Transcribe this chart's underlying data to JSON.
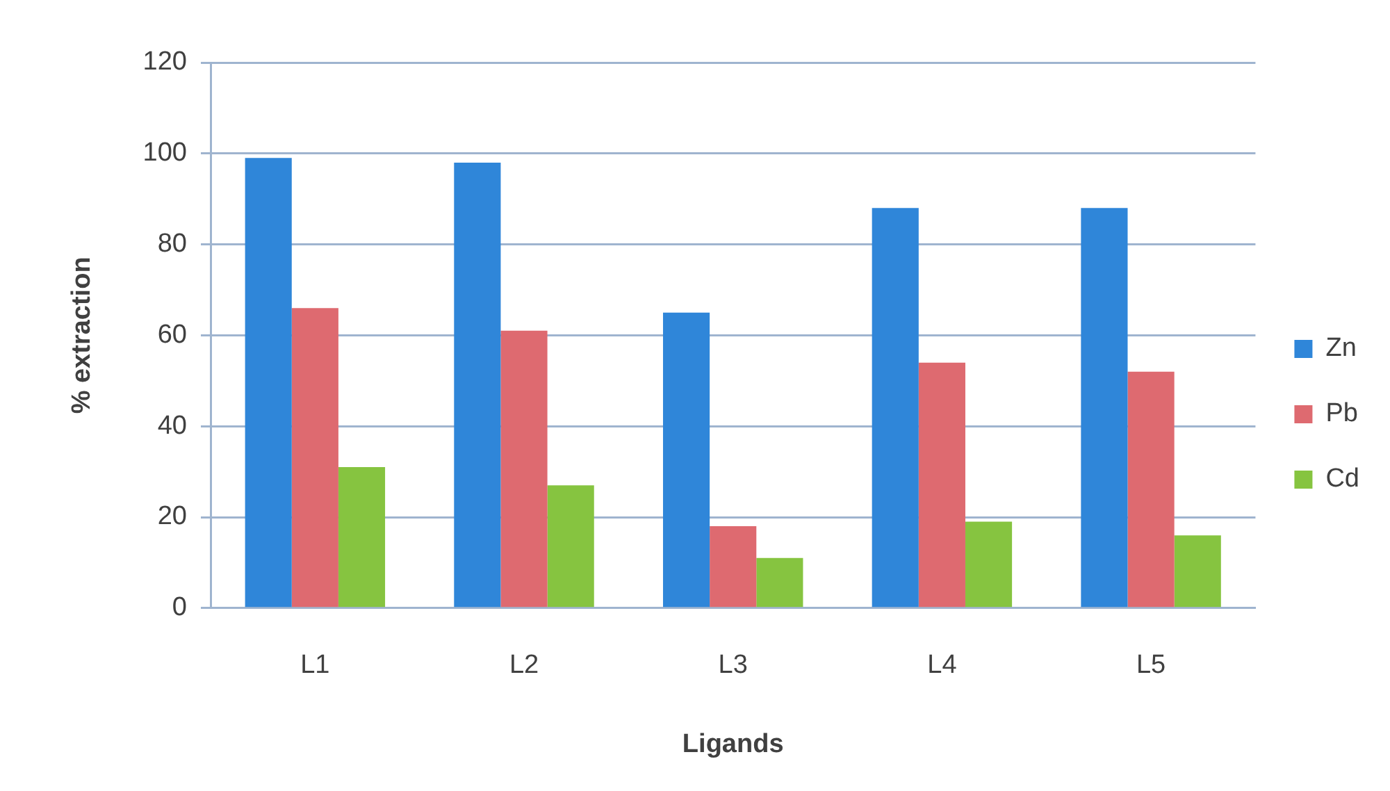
{
  "chart_data": {
    "type": "bar",
    "xlabel": "Ligands",
    "ylabel": "% extraction",
    "categories": [
      "L1",
      "L2",
      "L3",
      "L4",
      "L5"
    ],
    "series": [
      {
        "name": "Zn",
        "color": "#2f86d9",
        "values": [
          99,
          98,
          65,
          88,
          88
        ]
      },
      {
        "name": "Pb",
        "color": "#de6a70",
        "values": [
          66,
          61,
          18,
          54,
          52
        ]
      },
      {
        "name": "Cd",
        "color": "#86c440",
        "values": [
          31,
          27,
          11,
          19,
          16
        ]
      }
    ],
    "ylim": [
      0,
      120
    ],
    "yticks": [
      0,
      20,
      40,
      60,
      80,
      100,
      120
    ],
    "grid": "y",
    "legend": "right"
  }
}
